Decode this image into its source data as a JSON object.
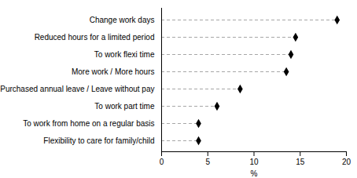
{
  "chart_data": {
    "type": "lollipop",
    "orientation": "horizontal",
    "categories": [
      "Flexibility to care for family/child",
      "To work from home on a regular basis",
      "To work part time",
      "Purchased annual leave / Leave without pay",
      "More work / More hours",
      "To work flexi time",
      "Reduced hours for a limited period",
      "Change work days"
    ],
    "values": [
      4.0,
      4.0,
      6.0,
      8.5,
      13.5,
      14.0,
      14.5,
      19.0
    ],
    "color": "#000000",
    "marker": "diamond",
    "line_style": "dashed",
    "xlim": [
      0,
      20
    ],
    "xticks": [
      0,
      5,
      10,
      15,
      20
    ],
    "xlabel": "%",
    "grid": false
  }
}
